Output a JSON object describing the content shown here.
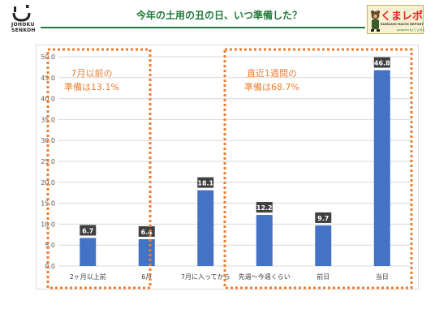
{
  "header": {
    "logo_text_1": "JOHOKU",
    "logo_text_2": "SENKOH",
    "title": "今年の土用の丑の日、いつ準備した？",
    "badge_title": "くまレポ",
    "badge_subtitle": "KUMASHI MACHI REPORT",
    "badge_powered": "powered by じょほら"
  },
  "colors": {
    "brand_green": "#1f7a3a",
    "bar_blue": "#4472c4",
    "annotation_orange": "#ed7d31",
    "label_box": "#404040",
    "badge_red": "#e0262a"
  },
  "chart_data": {
    "type": "bar",
    "categories": [
      "2ヶ月以上前",
      "6月",
      "7月に入ってから",
      "先週～今週くらい",
      "前日",
      "当日"
    ],
    "values": [
      6.7,
      6.4,
      18.1,
      12.2,
      9.7,
      46.8
    ],
    "ylim": [
      0,
      50
    ],
    "yticks": [
      "0.0",
      "5.0",
      "10.0",
      "15.0",
      "20.0",
      "25.0",
      "30.0",
      "35.0",
      "40.0",
      "45.0",
      "50.0"
    ],
    "grid": true,
    "annotations": [
      {
        "line1": "7月以前の",
        "line2": "準備は13.1%"
      },
      {
        "line1": "直近1週間の",
        "line2": "準備は68.7%"
      }
    ]
  }
}
